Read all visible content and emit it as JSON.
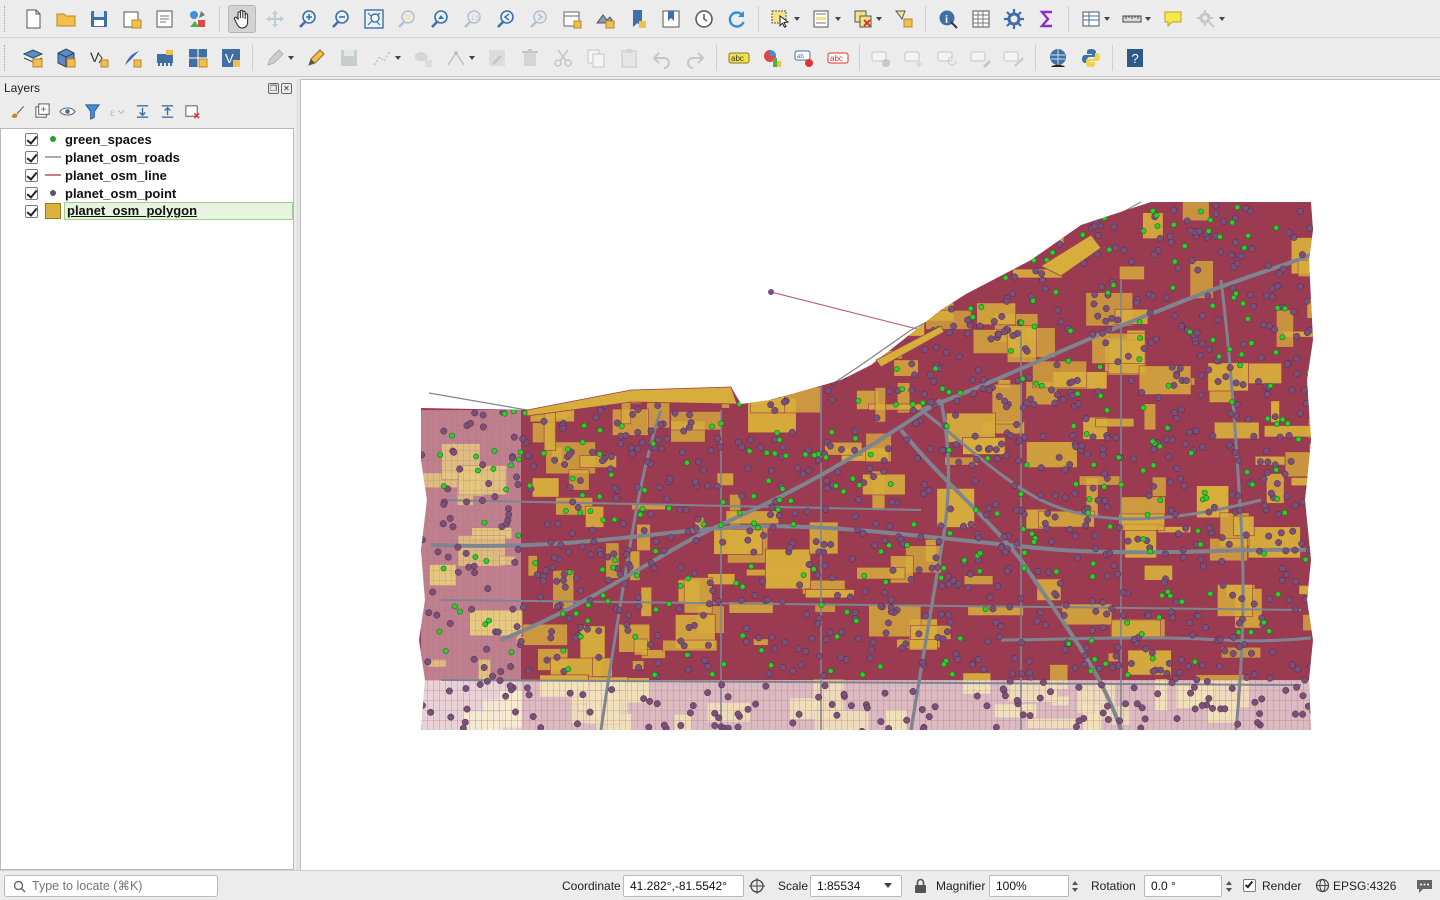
{
  "toolbar1": {
    "buttons": [
      "new-project",
      "open-project",
      "save-project",
      "new-print-layout",
      "layout-manager",
      "style-manager",
      "pan-map",
      "pan-to-selection",
      "zoom-in",
      "zoom-out",
      "zoom-full",
      "zoom-to-selection",
      "zoom-to-layer",
      "zoom-native",
      "zoom-last",
      "zoom-next",
      "new-map-view",
      "new-3d-view",
      "new-bookmark",
      "show-bookmarks",
      "temporal-controller",
      "refresh",
      "select-features",
      "select-by-value",
      "deselect",
      "select-location",
      "identify",
      "attribute-table",
      "processing-toolbox",
      "statistics-summary",
      "field-calculator",
      "measure",
      "map-tips",
      "settings"
    ]
  },
  "toolbar2": {
    "buttons": [
      "data-source-manager",
      "new-geopackage-layer",
      "new-shapefile-layer",
      "new-spatialite-layer",
      "new-virtual-layer",
      "new-temporary-layer",
      "new-mesh-layer",
      "toggle-editing",
      "current-edits",
      "save-layer-edits",
      "digitize",
      "vertex-tool",
      "add-feature",
      "move-feature",
      "delete-selected",
      "cut-features",
      "copy-features",
      "paste-features",
      "undo",
      "redo",
      "label-tool",
      "diagram-tool",
      "layer-labeling",
      "pin-labels",
      "highlight-labels",
      "show-hide-labels",
      "move-label",
      "rotate-label",
      "change-label",
      "plugins",
      "python-console",
      "help"
    ]
  },
  "layers_panel": {
    "title": "Layers",
    "tools": [
      "open-styling",
      "add-group",
      "manage-visibility",
      "filter-legend",
      "expression-filter",
      "expand-all",
      "collapse-all",
      "remove-layer"
    ],
    "layers": [
      {
        "name": "green_spaces",
        "checked": true,
        "symbol": "point",
        "color": "#2ca02c"
      },
      {
        "name": "planet_osm_roads",
        "checked": true,
        "symbol": "line",
        "color": "#8c8c8c"
      },
      {
        "name": "planet_osm_line",
        "checked": true,
        "symbol": "line",
        "color": "#c0505a"
      },
      {
        "name": "planet_osm_point",
        "checked": true,
        "symbol": "point",
        "color": "#6b4a6e"
      },
      {
        "name": "planet_osm_polygon",
        "checked": true,
        "symbol": "polygon",
        "color": "#d9b33b",
        "selected": true
      }
    ]
  },
  "map": {
    "polygon_fill": "#d7ad3c",
    "polygon_stroke": "#9b3b52",
    "point_color": "#7b4f78",
    "road_color": "#7f8590",
    "line_color": "#b0505c",
    "green_color": "#2bd12b"
  },
  "statusbar": {
    "locator_placeholder": "Type to locate (⌘K)",
    "coordinate_label": "Coordinate",
    "coordinate_value": "41.282°,-81.5542°",
    "scale_label": "Scale",
    "scale_value": "1:85534",
    "magnifier_label": "Magnifier",
    "magnifier_value": "100%",
    "rotation_label": "Rotation",
    "rotation_value": "0.0 °",
    "render_label": "Render",
    "render_checked": true,
    "crs_label": "EPSG:4326"
  }
}
